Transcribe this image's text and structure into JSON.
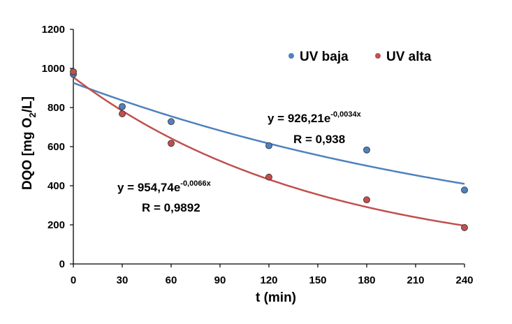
{
  "chart_data": {
    "type": "scatter",
    "xlabel": "t (min)",
    "ylabel": {
      "base": "DQO [mg O",
      "subscript": "2",
      "tail": "/L]"
    },
    "xlim": [
      0,
      240
    ],
    "ylim": [
      0,
      1200
    ],
    "xticks": [
      0,
      30,
      60,
      90,
      120,
      150,
      180,
      210,
      240
    ],
    "yticks": [
      0,
      200,
      400,
      600,
      800,
      1000,
      1200
    ],
    "grid": false,
    "legend_position": "top-right",
    "series": [
      {
        "name": "UV baja",
        "color": "#4f81bd",
        "x": [
          0,
          30,
          60,
          120,
          180,
          240
        ],
        "y": [
          970,
          805,
          728,
          605,
          583,
          378
        ],
        "trendline": {
          "type": "exponential",
          "a": 926.21,
          "b": -0.0034
        },
        "equation": {
          "base": "y = 926,21e",
          "exponent": "-0,0034x"
        },
        "r_label": "R = 0,938"
      },
      {
        "name": "UV alta",
        "color": "#c0504d",
        "x": [
          0,
          30,
          60,
          120,
          180,
          240
        ],
        "y": [
          983,
          768,
          617,
          444,
          328,
          186
        ],
        "trendline": {
          "type": "exponential",
          "a": 954.74,
          "b": -0.0066
        },
        "equation": {
          "base": "y = 954,74e",
          "exponent": "-0,0066x"
        },
        "r_label": "R = 0,9892"
      }
    ]
  }
}
